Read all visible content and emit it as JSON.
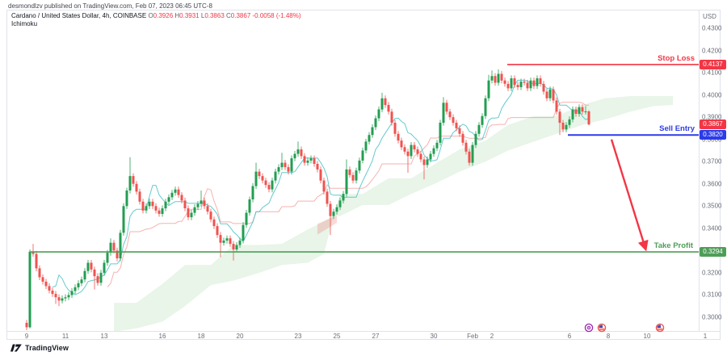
{
  "attribution": "desmondlzv published on TradingView.com, Feb 07, 2023 06:45 UTC-8",
  "header": {
    "symbol_title": "Cardano / United States Dollar, 4h, COINBASE",
    "ohlc": {
      "o": "O",
      "o_v": "0.3926",
      "h": "H",
      "h_v": "0.3931",
      "l": "L",
      "l_v": "0.3863",
      "c": "C",
      "c_v": "0.3867",
      "chg": "-0.0058 (-1.48%)"
    },
    "indicator": "Ichimoku"
  },
  "axes": {
    "price_unit": "USD",
    "price_ticks": [
      "0.4300",
      "0.4200",
      "0.4100",
      "0.4000",
      "0.3900",
      "0.3800",
      "0.3700",
      "0.3600",
      "0.3500",
      "0.3400",
      "0.3300",
      "0.3200",
      "0.3100",
      "0.3000"
    ],
    "time_ticks": [
      {
        "label": "9",
        "day": 0
      },
      {
        "label": "11",
        "day": 2
      },
      {
        "label": "13",
        "day": 4
      },
      {
        "label": "16",
        "day": 7
      },
      {
        "label": "18",
        "day": 9
      },
      {
        "label": "20",
        "day": 11
      },
      {
        "label": "23",
        "day": 14
      },
      {
        "label": "25",
        "day": 16
      },
      {
        "label": "27",
        "day": 18
      },
      {
        "label": "30",
        "day": 21
      },
      {
        "label": "Feb",
        "day": 23
      },
      {
        "label": "2",
        "day": 24
      },
      {
        "label": "6",
        "day": 28
      },
      {
        "label": "8",
        "day": 30
      },
      {
        "label": "10",
        "day": 32
      },
      {
        "label": "1",
        "day": 35
      }
    ]
  },
  "levels": {
    "stop_loss": {
      "label": "Stop Loss",
      "badge": "0.4137",
      "price": 0.4137,
      "from_index": 148.75,
      "color": "#f23645"
    },
    "sell_entry": {
      "label": "Sell Entry",
      "badge": "0.3820",
      "price": 0.382,
      "from_index": 167.5,
      "color": "#2c3ce8"
    },
    "take_profit": {
      "label": "Take Profit",
      "badge": "0.3294",
      "price": 0.3294,
      "from_index": 1,
      "color": "#4d9e57"
    },
    "last_price": {
      "badge": "0.3867",
      "price": 0.3867,
      "color": "#f23645"
    }
  },
  "events": [
    {
      "name": "crypto-event-icon",
      "index": 174,
      "color": "#9c27b0"
    },
    {
      "name": "us-flag-event-icon",
      "index": 178,
      "color": "#ef5350"
    },
    {
      "name": "us-flag-event-icon",
      "index": 196,
      "color": "#ef5350"
    }
  ],
  "footer": {
    "logo": "TradingView"
  },
  "colors": {
    "up": "#239d52",
    "down": "#ef5350",
    "cloud_bull": "rgba(76,175,80,0.13)",
    "cloud_bear": "rgba(239,83,80,0.22)",
    "tenkan": "rgba(49,184,189,0.75)",
    "kijun": "rgba(239,115,112,0.55)",
    "arrow": "#f23645"
  },
  "chart_data": {
    "type": "candlestick",
    "title": "Cardano / United States Dollar, 4h, COINBASE",
    "indicator": "Ichimoku",
    "ylim": [
      0.294,
      0.438
    ],
    "grid": false,
    "candles": [
      [
        0.2975,
        0.2988,
        0.2942,
        0.2955
      ],
      [
        0.2955,
        0.3305,
        0.295,
        0.3295
      ],
      [
        0.3295,
        0.333,
        0.3272,
        0.3285
      ],
      [
        0.3285,
        0.3298,
        0.3207,
        0.322
      ],
      [
        0.322,
        0.3233,
        0.3167,
        0.318
      ],
      [
        0.318,
        0.3193,
        0.3147,
        0.316
      ],
      [
        0.316,
        0.3173,
        0.3127,
        0.314
      ],
      [
        0.314,
        0.3153,
        0.3107,
        0.312
      ],
      [
        0.312,
        0.3133,
        0.3092,
        0.3105
      ],
      [
        0.3105,
        0.3118,
        0.306,
        0.309
      ],
      [
        0.309,
        0.3103,
        0.305,
        0.3075
      ],
      [
        0.3075,
        0.3098,
        0.3062,
        0.3085
      ],
      [
        0.3085,
        0.3103,
        0.3072,
        0.309
      ],
      [
        0.309,
        0.3113,
        0.3077,
        0.31
      ],
      [
        0.31,
        0.3131,
        0.3087,
        0.3118
      ],
      [
        0.3118,
        0.3148,
        0.3105,
        0.3135
      ],
      [
        0.3135,
        0.3166,
        0.3122,
        0.3153
      ],
      [
        0.3153,
        0.3183,
        0.314,
        0.317
      ],
      [
        0.317,
        0.3221,
        0.3157,
        0.3208
      ],
      [
        0.3208,
        0.3258,
        0.3195,
        0.3245
      ],
      [
        0.3245,
        0.3258,
        0.3202,
        0.3215
      ],
      [
        0.3215,
        0.3228,
        0.3125,
        0.3185
      ],
      [
        0.3185,
        0.3198,
        0.3142,
        0.3155
      ],
      [
        0.3155,
        0.3213,
        0.3142,
        0.32
      ],
      [
        0.32,
        0.3258,
        0.3187,
        0.3245
      ],
      [
        0.3245,
        0.3303,
        0.3232,
        0.329
      ],
      [
        0.329,
        0.3355,
        0.3277,
        0.3335
      ],
      [
        0.3335,
        0.3348,
        0.3287,
        0.33
      ],
      [
        0.33,
        0.3313,
        0.3252,
        0.3265
      ],
      [
        0.3265,
        0.3393,
        0.3252,
        0.338
      ],
      [
        0.338,
        0.3513,
        0.3367,
        0.35
      ],
      [
        0.35,
        0.3583,
        0.3487,
        0.357
      ],
      [
        0.357,
        0.372,
        0.3557,
        0.3635
      ],
      [
        0.3635,
        0.3648,
        0.3587,
        0.36
      ],
      [
        0.36,
        0.3613,
        0.3552,
        0.3565
      ],
      [
        0.3565,
        0.3578,
        0.3507,
        0.352
      ],
      [
        0.352,
        0.3533,
        0.3467,
        0.348
      ],
      [
        0.348,
        0.3513,
        0.3467,
        0.35
      ],
      [
        0.35,
        0.3533,
        0.3487,
        0.352
      ],
      [
        0.352,
        0.3533,
        0.3487,
        0.35
      ],
      [
        0.35,
        0.3513,
        0.3467,
        0.348
      ],
      [
        0.348,
        0.3493,
        0.3452,
        0.3465
      ],
      [
        0.3465,
        0.3503,
        0.3452,
        0.349
      ],
      [
        0.349,
        0.3533,
        0.3477,
        0.352
      ],
      [
        0.352,
        0.3553,
        0.3507,
        0.354
      ],
      [
        0.354,
        0.3573,
        0.3527,
        0.356
      ],
      [
        0.356,
        0.3588,
        0.3547,
        0.3575
      ],
      [
        0.3575,
        0.3588,
        0.3537,
        0.355
      ],
      [
        0.355,
        0.3563,
        0.3512,
        0.3525
      ],
      [
        0.3525,
        0.3538,
        0.3477,
        0.349
      ],
      [
        0.349,
        0.3503,
        0.3437,
        0.345
      ],
      [
        0.345,
        0.3483,
        0.3437,
        0.347
      ],
      [
        0.347,
        0.3508,
        0.3457,
        0.3495
      ],
      [
        0.3495,
        0.3523,
        0.3482,
        0.351
      ],
      [
        0.351,
        0.357,
        0.3497,
        0.3525
      ],
      [
        0.3525,
        0.3538,
        0.3487,
        0.35
      ],
      [
        0.35,
        0.3513,
        0.3462,
        0.3475
      ],
      [
        0.3475,
        0.3488,
        0.3427,
        0.344
      ],
      [
        0.344,
        0.3453,
        0.3397,
        0.341
      ],
      [
        0.341,
        0.3423,
        0.3357,
        0.337
      ],
      [
        0.337,
        0.3383,
        0.327,
        0.3335
      ],
      [
        0.3335,
        0.3358,
        0.3322,
        0.3345
      ],
      [
        0.3345,
        0.3368,
        0.3332,
        0.3355
      ],
      [
        0.3355,
        0.3368,
        0.3317,
        0.333
      ],
      [
        0.333,
        0.3343,
        0.3255,
        0.3305
      ],
      [
        0.3305,
        0.3338,
        0.3292,
        0.3325
      ],
      [
        0.3325,
        0.3358,
        0.3312,
        0.3345
      ],
      [
        0.3345,
        0.3428,
        0.3332,
        0.3415
      ],
      [
        0.3415,
        0.3483,
        0.3402,
        0.347
      ],
      [
        0.347,
        0.3543,
        0.3457,
        0.353
      ],
      [
        0.353,
        0.3603,
        0.3517,
        0.359
      ],
      [
        0.359,
        0.3695,
        0.3577,
        0.3655
      ],
      [
        0.3655,
        0.3668,
        0.3622,
        0.3635
      ],
      [
        0.3635,
        0.3648,
        0.3602,
        0.3615
      ],
      [
        0.3615,
        0.3628,
        0.3582,
        0.3595
      ],
      [
        0.3595,
        0.3608,
        0.3562,
        0.3575
      ],
      [
        0.3575,
        0.3628,
        0.3562,
        0.3615
      ],
      [
        0.3615,
        0.3668,
        0.3602,
        0.3655
      ],
      [
        0.3655,
        0.3688,
        0.3642,
        0.3675
      ],
      [
        0.3675,
        0.374,
        0.3662,
        0.3695
      ],
      [
        0.3695,
        0.3708,
        0.3662,
        0.3675
      ],
      [
        0.3675,
        0.3688,
        0.3642,
        0.3655
      ],
      [
        0.3655,
        0.3728,
        0.3642,
        0.3715
      ],
      [
        0.3715,
        0.3748,
        0.3702,
        0.3735
      ],
      [
        0.3735,
        0.379,
        0.3722,
        0.3755
      ],
      [
        0.3755,
        0.3768,
        0.3712,
        0.3725
      ],
      [
        0.3725,
        0.3738,
        0.3682,
        0.3695
      ],
      [
        0.3695,
        0.3718,
        0.3682,
        0.3705
      ],
      [
        0.3705,
        0.3728,
        0.3692,
        0.3715
      ],
      [
        0.3715,
        0.3728,
        0.3677,
        0.369
      ],
      [
        0.369,
        0.3703,
        0.3652,
        0.3665
      ],
      [
        0.3665,
        0.3678,
        0.3602,
        0.3615
      ],
      [
        0.3615,
        0.3628,
        0.3552,
        0.3565
      ],
      [
        0.3565,
        0.3578,
        0.3497,
        0.351
      ],
      [
        0.351,
        0.3523,
        0.337,
        0.3455
      ],
      [
        0.3455,
        0.3488,
        0.3442,
        0.3475
      ],
      [
        0.3475,
        0.3508,
        0.3462,
        0.3495
      ],
      [
        0.3495,
        0.3538,
        0.3482,
        0.3525
      ],
      [
        0.3525,
        0.3568,
        0.3512,
        0.3555
      ],
      [
        0.3555,
        0.371,
        0.3542,
        0.3665
      ],
      [
        0.3665,
        0.3678,
        0.3627,
        0.364
      ],
      [
        0.364,
        0.3653,
        0.3602,
        0.3615
      ],
      [
        0.3615,
        0.3673,
        0.3602,
        0.366
      ],
      [
        0.366,
        0.3718,
        0.3647,
        0.3705
      ],
      [
        0.3705,
        0.3763,
        0.3692,
        0.375
      ],
      [
        0.375,
        0.3803,
        0.3737,
        0.379
      ],
      [
        0.379,
        0.3833,
        0.3777,
        0.382
      ],
      [
        0.382,
        0.3868,
        0.3807,
        0.3855
      ],
      [
        0.3855,
        0.3908,
        0.3842,
        0.3895
      ],
      [
        0.3895,
        0.3948,
        0.3882,
        0.3935
      ],
      [
        0.3935,
        0.401,
        0.3922,
        0.3985
      ],
      [
        0.3985,
        0.3998,
        0.3942,
        0.3955
      ],
      [
        0.3955,
        0.3968,
        0.3912,
        0.3925
      ],
      [
        0.3925,
        0.3938,
        0.3862,
        0.3875
      ],
      [
        0.3875,
        0.3888,
        0.3812,
        0.3825
      ],
      [
        0.3825,
        0.3838,
        0.3782,
        0.3795
      ],
      [
        0.3795,
        0.3808,
        0.3752,
        0.3765
      ],
      [
        0.3765,
        0.3778,
        0.3732,
        0.3745
      ],
      [
        0.3745,
        0.3758,
        0.365,
        0.3725
      ],
      [
        0.3725,
        0.3788,
        0.3712,
        0.3775
      ],
      [
        0.3775,
        0.3788,
        0.3742,
        0.3755
      ],
      [
        0.3755,
        0.3768,
        0.3722,
        0.3735
      ],
      [
        0.3735,
        0.3748,
        0.3697,
        0.371
      ],
      [
        0.371,
        0.3723,
        0.362,
        0.3685
      ],
      [
        0.3685,
        0.3723,
        0.3672,
        0.371
      ],
      [
        0.371,
        0.3748,
        0.3697,
        0.3735
      ],
      [
        0.3735,
        0.3773,
        0.3722,
        0.376
      ],
      [
        0.376,
        0.3798,
        0.3747,
        0.3785
      ],
      [
        0.3785,
        0.3888,
        0.3772,
        0.3875
      ],
      [
        0.3875,
        0.399,
        0.3862,
        0.3965
      ],
      [
        0.3965,
        0.3978,
        0.3912,
        0.3925
      ],
      [
        0.3925,
        0.3938,
        0.3887,
        0.39
      ],
      [
        0.39,
        0.3913,
        0.3862,
        0.3875
      ],
      [
        0.3875,
        0.3888,
        0.3837,
        0.385
      ],
      [
        0.385,
        0.3863,
        0.3812,
        0.3825
      ],
      [
        0.3825,
        0.3838,
        0.3772,
        0.3785
      ],
      [
        0.3785,
        0.3798,
        0.3732,
        0.3745
      ],
      [
        0.3745,
        0.3758,
        0.3682,
        0.3695
      ],
      [
        0.3695,
        0.3788,
        0.3682,
        0.3775
      ],
      [
        0.3775,
        0.3838,
        0.3762,
        0.3825
      ],
      [
        0.3825,
        0.3878,
        0.3812,
        0.3865
      ],
      [
        0.3865,
        0.3918,
        0.3852,
        0.3905
      ],
      [
        0.3905,
        0.3998,
        0.3892,
        0.3985
      ],
      [
        0.3985,
        0.409,
        0.3972,
        0.4065
      ],
      [
        0.4065,
        0.411,
        0.4052,
        0.4085
      ],
      [
        0.4085,
        0.4098,
        0.4042,
        0.4055
      ],
      [
        0.4055,
        0.4115,
        0.4042,
        0.4095
      ],
      [
        0.4095,
        0.4108,
        0.4052,
        0.4065
      ],
      [
        0.4065,
        0.4078,
        0.4037,
        0.405
      ],
      [
        0.405,
        0.4063,
        0.4017,
        0.403
      ],
      [
        0.403,
        0.4088,
        0.4017,
        0.4075
      ],
      [
        0.4075,
        0.4088,
        0.4032,
        0.4045
      ],
      [
        0.4045,
        0.4058,
        0.4022,
        0.4035
      ],
      [
        0.4035,
        0.4073,
        0.4022,
        0.406
      ],
      [
        0.406,
        0.4073,
        0.4042,
        0.4055
      ],
      [
        0.4055,
        0.4068,
        0.4017,
        0.403
      ],
      [
        0.403,
        0.4078,
        0.4017,
        0.4065
      ],
      [
        0.4065,
        0.4078,
        0.4027,
        0.404
      ],
      [
        0.404,
        0.4088,
        0.4027,
        0.4075
      ],
      [
        0.4075,
        0.4088,
        0.4037,
        0.405
      ],
      [
        0.405,
        0.4063,
        0.4002,
        0.4015
      ],
      [
        0.4015,
        0.4028,
        0.3972,
        0.3985
      ],
      [
        0.3985,
        0.4038,
        0.3972,
        0.4025
      ],
      [
        0.4025,
        0.4038,
        0.3962,
        0.3975
      ],
      [
        0.3975,
        0.3988,
        0.3912,
        0.3925
      ],
      [
        0.3925,
        0.3938,
        0.382,
        0.3875
      ],
      [
        0.3875,
        0.3888,
        0.3832,
        0.3845
      ],
      [
        0.3845,
        0.3878,
        0.3832,
        0.3865
      ],
      [
        0.3865,
        0.3903,
        0.3852,
        0.389
      ],
      [
        0.389,
        0.3948,
        0.3877,
        0.3935
      ],
      [
        0.3935,
        0.3948,
        0.3902,
        0.3915
      ],
      [
        0.3915,
        0.3958,
        0.3902,
        0.3945
      ],
      [
        0.3945,
        0.3958,
        0.3912,
        0.3925
      ],
      [
        0.3925,
        0.395,
        0.3912,
        0.3926
      ],
      [
        0.3926,
        0.3931,
        0.3863,
        0.3867
      ]
    ],
    "ichimoku_cloud": {
      "index": [
        27,
        34,
        42,
        49,
        57,
        64,
        72,
        79,
        87,
        92,
        95,
        97,
        104,
        112,
        119,
        127,
        134,
        142,
        149,
        157,
        164,
        172,
        179,
        187,
        194,
        200
      ],
      "top": [
        0.3065,
        0.3065,
        0.315,
        0.3235,
        0.3235,
        0.3325,
        0.3325,
        0.333,
        0.3395,
        0.343,
        0.3458,
        0.3555,
        0.3555,
        0.3625,
        0.3625,
        0.3695,
        0.3755,
        0.3795,
        0.3865,
        0.3905,
        0.3905,
        0.3955,
        0.3985,
        0.3995,
        0.3995,
        0.3995
      ],
      "bottom": [
        0.2935,
        0.295,
        0.298,
        0.305,
        0.3145,
        0.3165,
        0.32,
        0.3235,
        0.3245,
        0.3285,
        0.3458,
        0.3455,
        0.3505,
        0.3505,
        0.3555,
        0.3605,
        0.3655,
        0.37,
        0.375,
        0.379,
        0.3825,
        0.3865,
        0.389,
        0.3925,
        0.395,
        0.3955
      ],
      "bear_patch": [
        [
          90,
          0.342
        ],
        [
          96,
          0.3458
        ],
        [
          96,
          0.3425
        ],
        [
          90,
          0.3372
        ]
      ]
    },
    "annotations": {
      "arrow": {
        "from": [
          181,
          0.38
        ],
        "to": [
          191.5,
          0.331
        ]
      }
    }
  }
}
